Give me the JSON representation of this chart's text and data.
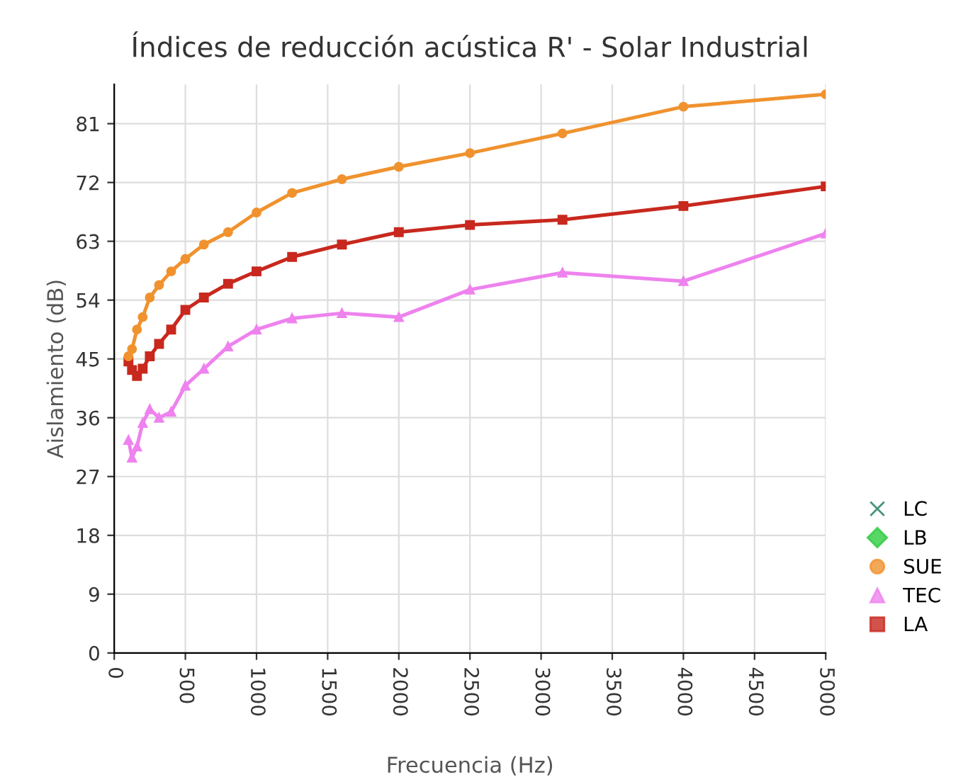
{
  "chart_data": {
    "type": "line",
    "title": "Índices de reducción acústica R' - Solar Industrial",
    "xlabel": "Frecuencia (Hz)",
    "ylabel": "Aislamiento (dB)",
    "x": [
      100,
      125,
      160,
      200,
      250,
      315,
      400,
      500,
      630,
      800,
      1000,
      1250,
      1600,
      2000,
      2500,
      3150,
      4000,
      5000
    ],
    "series": [
      {
        "name": "LC",
        "color": "#1a7a5a",
        "marker": "cross",
        "values": [
          null,
          null,
          null,
          null,
          null,
          null,
          null,
          null,
          null,
          null,
          null,
          null,
          null,
          null,
          null,
          null,
          null,
          null
        ]
      },
      {
        "name": "LB",
        "color": "#2ecc40",
        "marker": "diamond",
        "values": [
          null,
          null,
          null,
          null,
          null,
          null,
          null,
          null,
          null,
          null,
          null,
          null,
          null,
          null,
          null,
          null,
          null,
          null
        ]
      },
      {
        "name": "SUE",
        "color": "#f0922e",
        "marker": "circle",
        "values": [
          45.4,
          46.5,
          49.5,
          51.4,
          54.4,
          56.3,
          58.4,
          60.3,
          62.5,
          64.4,
          67.4,
          70.4,
          72.5,
          74.4,
          76.5,
          79.5,
          83.6,
          85.5
        ]
      },
      {
        "name": "TEC",
        "color": "#ee82ee",
        "marker": "triangle",
        "values": [
          32.6,
          29.9,
          31.6,
          35.2,
          37.3,
          36.0,
          36.9,
          40.9,
          43.5,
          46.9,
          49.5,
          51.2,
          52.0,
          51.4,
          55.6,
          58.2,
          56.9,
          64.2
        ]
      },
      {
        "name": "LA",
        "color": "#c8281e",
        "marker": "square",
        "values": [
          44.6,
          43.3,
          42.4,
          43.5,
          45.4,
          47.3,
          49.5,
          52.5,
          54.4,
          56.5,
          58.4,
          60.6,
          62.5,
          64.4,
          65.5,
          66.3,
          68.4,
          71.4
        ]
      }
    ],
    "xlim": [
      0,
      5000
    ],
    "xticks": [
      0,
      500,
      1000,
      1500,
      2000,
      2500,
      3000,
      3500,
      4000,
      4500,
      5000
    ],
    "ylim": [
      0,
      87
    ],
    "yticks": [
      0,
      9,
      18,
      27,
      36,
      45,
      54,
      63,
      72,
      81
    ],
    "grid": true,
    "legend": "bottom right",
    "line_style": "solid"
  }
}
